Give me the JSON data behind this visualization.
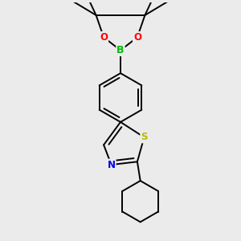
{
  "background_color": "#ebebeb",
  "atom_colors": {
    "B": "#00bb00",
    "O": "#ff0000",
    "N": "#0000ee",
    "S": "#bbbb00",
    "C": "#000000"
  },
  "bond_color": "#000000",
  "bond_width": 1.4,
  "figsize": [
    3.0,
    3.0
  ],
  "dpi": 100,
  "xlim": [
    -1.0,
    1.0
  ],
  "ylim": [
    -1.55,
    1.55
  ]
}
